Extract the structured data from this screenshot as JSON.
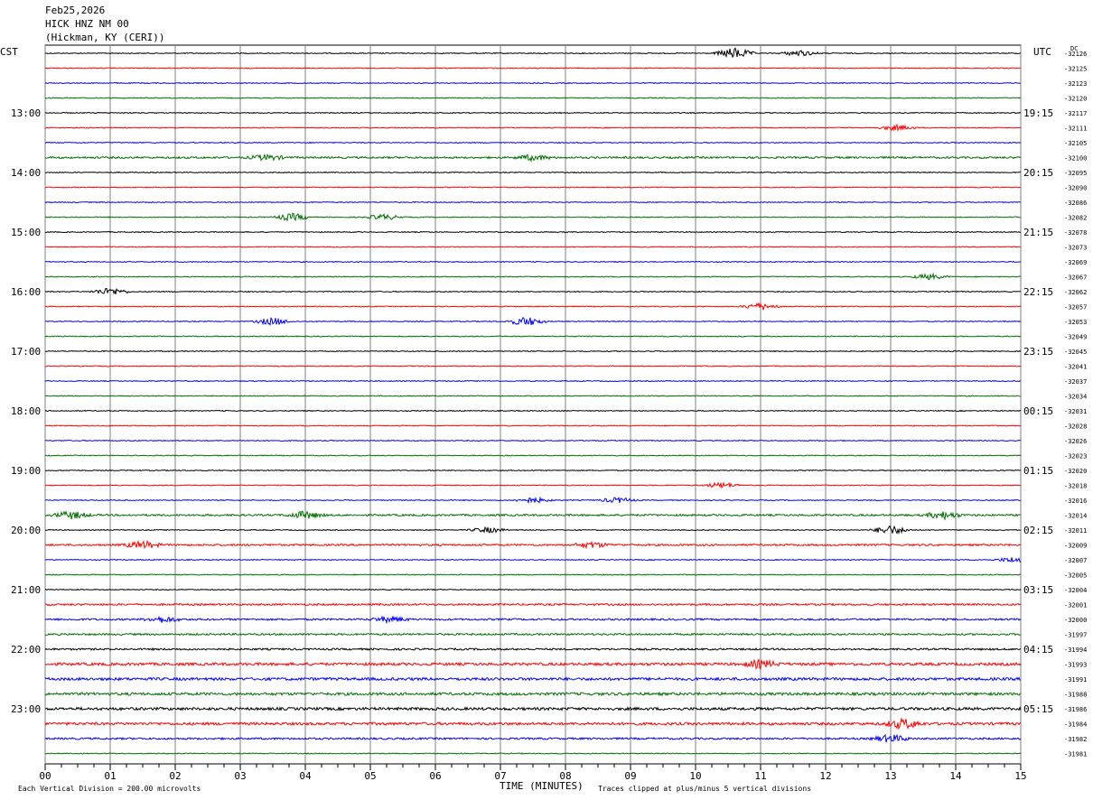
{
  "header": {
    "date": "Feb25,2026",
    "station": "HICK HNZ NM 00",
    "location": "(Hickman, KY (CERI))"
  },
  "labels": {
    "left_tz": "CST",
    "right_tz": "UTC",
    "dc": "DC",
    "xlabel": "TIME (MINUTES)",
    "footer_left": "Each Vertical Division =  200.00 microvolts",
    "footer_right": "Traces clipped at plus/minus 5 vertical divisions"
  },
  "colors": {
    "trace_cycle": [
      "#000000",
      "#ff0000",
      "#0000ff",
      "#007000"
    ],
    "grid": "#808080"
  },
  "chart_data": {
    "type": "line",
    "title": "HICK HNZ NM 00",
    "xlabel": "TIME (MINUTES)",
    "xlim": [
      0,
      15
    ],
    "x_ticks": [
      "00",
      "01",
      "02",
      "03",
      "04",
      "05",
      "06",
      "07",
      "08",
      "09",
      "10",
      "11",
      "12",
      "13",
      "14",
      "15"
    ],
    "left_hour_labels": [
      "13:00",
      "14:00",
      "15:00",
      "16:00",
      "17:00",
      "18:00",
      "19:00",
      "20:00",
      "21:00",
      "22:00",
      "23:00"
    ],
    "right_hour_labels": [
      "19:15",
      "20:15",
      "21:15",
      "22:15",
      "23:15",
      "00:15",
      "01:15",
      "02:15",
      "03:15",
      "04:15",
      "05:15"
    ],
    "trace_minutes_per_line": 15,
    "trace_count": 48,
    "dc_offsets": [
      -32126,
      -32125,
      -32123,
      -32120,
      -32117,
      -32111,
      -32105,
      -32100,
      -32095,
      -32090,
      -32086,
      -32082,
      -32078,
      -32073,
      -32069,
      -32067,
      -32062,
      -32057,
      -32053,
      -32049,
      -32045,
      -32041,
      -32037,
      -32034,
      -32031,
      -32028,
      -32026,
      -32023,
      -32020,
      -32018,
      -32016,
      -32014,
      -32011,
      -32009,
      -32007,
      -32005,
      -32004,
      -32001,
      -32000,
      -31997,
      -31994,
      -31993,
      -31991,
      -31988,
      -31986,
      -31984,
      -31982,
      -31981
    ],
    "noise_level": [
      1,
      1,
      1,
      1,
      1,
      1,
      1,
      2,
      1,
      1,
      1,
      1,
      1,
      1,
      1,
      1,
      1,
      1,
      1,
      1,
      1,
      1,
      1,
      1,
      1,
      1,
      1,
      1,
      1,
      1,
      1,
      2,
      1,
      2,
      1,
      1,
      1,
      2,
      2,
      2,
      2,
      3,
      3,
      3,
      3,
      3,
      2,
      1
    ],
    "events": [
      {
        "trace": 0,
        "minute": 10.6,
        "amp": 6
      },
      {
        "trace": 0,
        "minute": 11.6,
        "amp": 3
      },
      {
        "trace": 5,
        "minute": 13.1,
        "amp": 3
      },
      {
        "trace": 7,
        "minute": 3.4,
        "amp": 3
      },
      {
        "trace": 7,
        "minute": 7.5,
        "amp": 3
      },
      {
        "trace": 11,
        "minute": 3.8,
        "amp": 4
      },
      {
        "trace": 11,
        "minute": 5.2,
        "amp": 3
      },
      {
        "trace": 15,
        "minute": 13.6,
        "amp": 3
      },
      {
        "trace": 16,
        "minute": 1.0,
        "amp": 4
      },
      {
        "trace": 17,
        "minute": 11.0,
        "amp": 4
      },
      {
        "trace": 18,
        "minute": 3.5,
        "amp": 4
      },
      {
        "trace": 18,
        "minute": 7.4,
        "amp": 5
      },
      {
        "trace": 29,
        "minute": 10.4,
        "amp": 3
      },
      {
        "trace": 30,
        "minute": 7.5,
        "amp": 3
      },
      {
        "trace": 30,
        "minute": 8.8,
        "amp": 3
      },
      {
        "trace": 31,
        "minute": 0.4,
        "amp": 4
      },
      {
        "trace": 31,
        "minute": 4.0,
        "amp": 4
      },
      {
        "trace": 31,
        "minute": 13.8,
        "amp": 4
      },
      {
        "trace": 32,
        "minute": 6.8,
        "amp": 3
      },
      {
        "trace": 32,
        "minute": 13.0,
        "amp": 5
      },
      {
        "trace": 33,
        "minute": 1.5,
        "amp": 4
      },
      {
        "trace": 33,
        "minute": 8.4,
        "amp": 3
      },
      {
        "trace": 34,
        "minute": 14.9,
        "amp": 3
      },
      {
        "trace": 38,
        "minute": 1.8,
        "amp": 3
      },
      {
        "trace": 38,
        "minute": 5.3,
        "amp": 3
      },
      {
        "trace": 41,
        "minute": 11.0,
        "amp": 4
      },
      {
        "trace": 45,
        "minute": 13.2,
        "amp": 5
      },
      {
        "trace": 46,
        "minute": 13.0,
        "amp": 4
      }
    ]
  }
}
